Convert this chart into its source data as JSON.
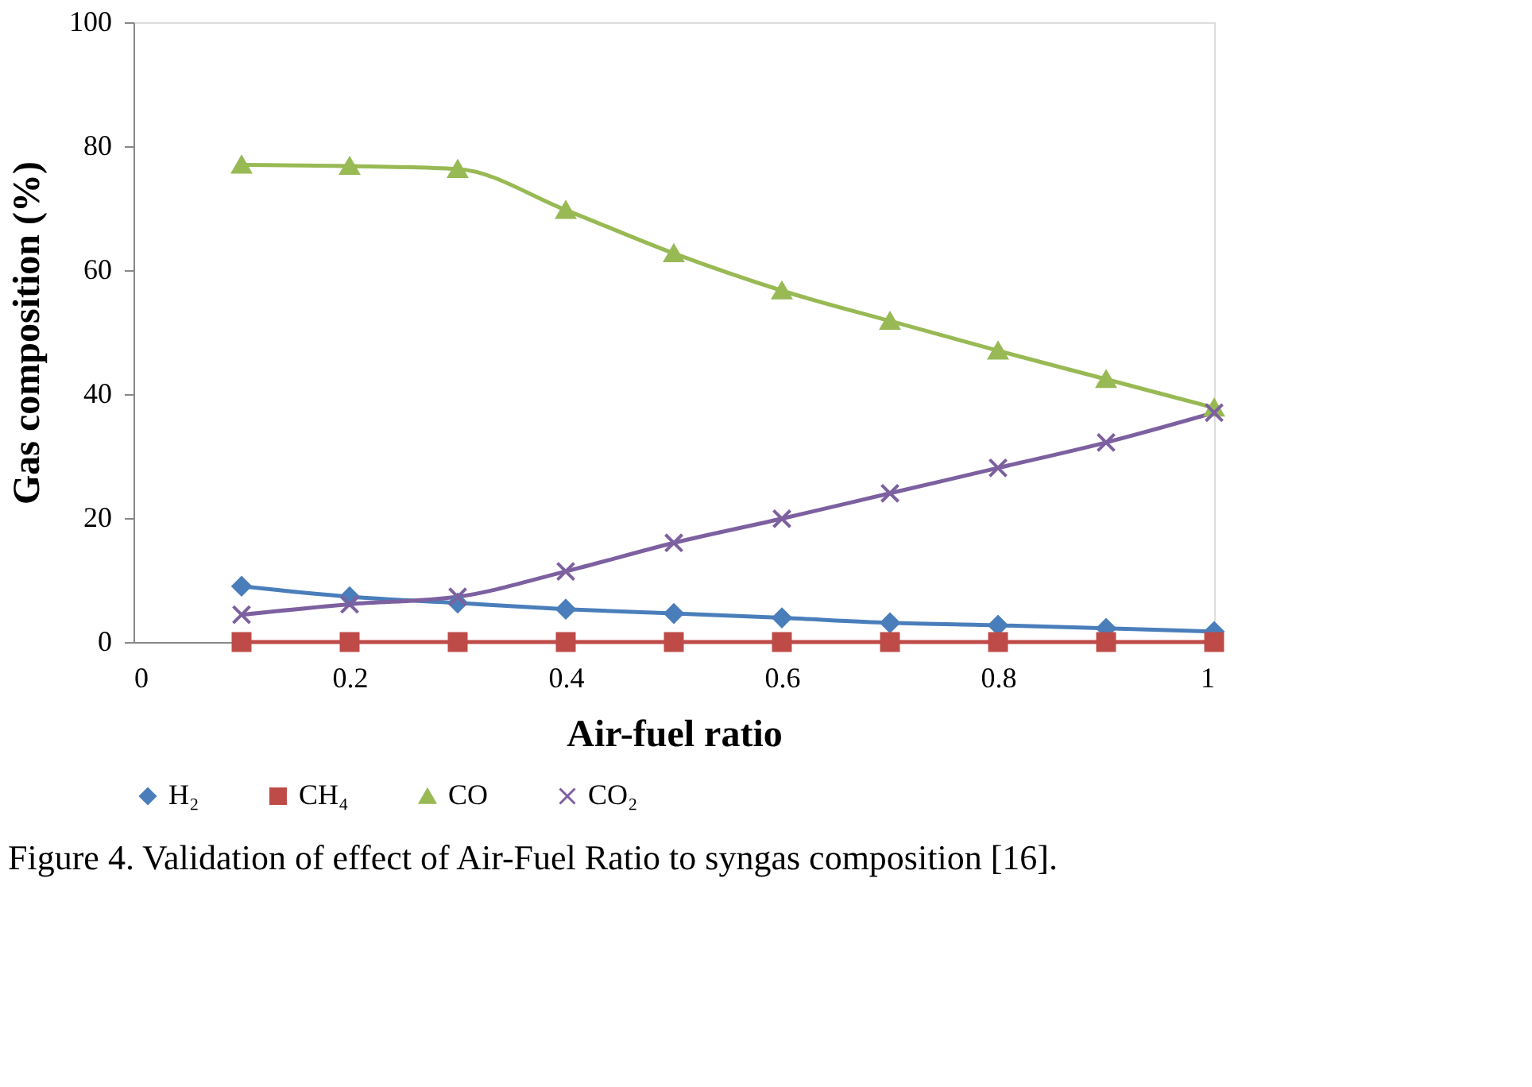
{
  "chart_data": {
    "type": "line",
    "xlabel": "Air-fuel ratio",
    "ylabel": "Gas composition (%)",
    "x": [
      0.1,
      0.2,
      0.3,
      0.4,
      0.5,
      0.6,
      0.7,
      0.8,
      0.9,
      1.0
    ],
    "series": [
      {
        "name": "H₂",
        "color": "#4a7ebb",
        "marker": "diamond",
        "values": [
          9.0,
          7.3,
          6.3,
          5.3,
          4.6,
          3.9,
          3.1,
          2.7,
          2.2,
          1.7
        ]
      },
      {
        "name": "CH₄",
        "color": "#be4b48",
        "marker": "square",
        "values": [
          0,
          0,
          0,
          0,
          0,
          0,
          0,
          0,
          0,
          0
        ]
      },
      {
        "name": "CO",
        "color": "#98b954",
        "marker": "triangle",
        "values": [
          77.0,
          76.8,
          76.3,
          69.7,
          62.7,
          56.7,
          51.8,
          47.0,
          42.4,
          37.8
        ]
      },
      {
        "name": "CO₂",
        "color": "#7d60a0",
        "marker": "cross",
        "values": [
          4.4,
          6.1,
          7.3,
          11.4,
          16.0,
          19.9,
          24.0,
          28.1,
          32.2,
          37.0
        ]
      }
    ],
    "xlim": [
      0,
      1
    ],
    "xticks": [
      0,
      0.2,
      0.4,
      0.6,
      0.8,
      1
    ],
    "ylim": [
      0,
      100
    ],
    "yticks": [
      0,
      20,
      40,
      60,
      80,
      100
    ],
    "grid": false,
    "legend": "bottom",
    "line_style": "solid",
    "annotations": [
      "Figure 4. Validation of effect of Air-Fuel Ratio to syngas composition [16]."
    ]
  }
}
